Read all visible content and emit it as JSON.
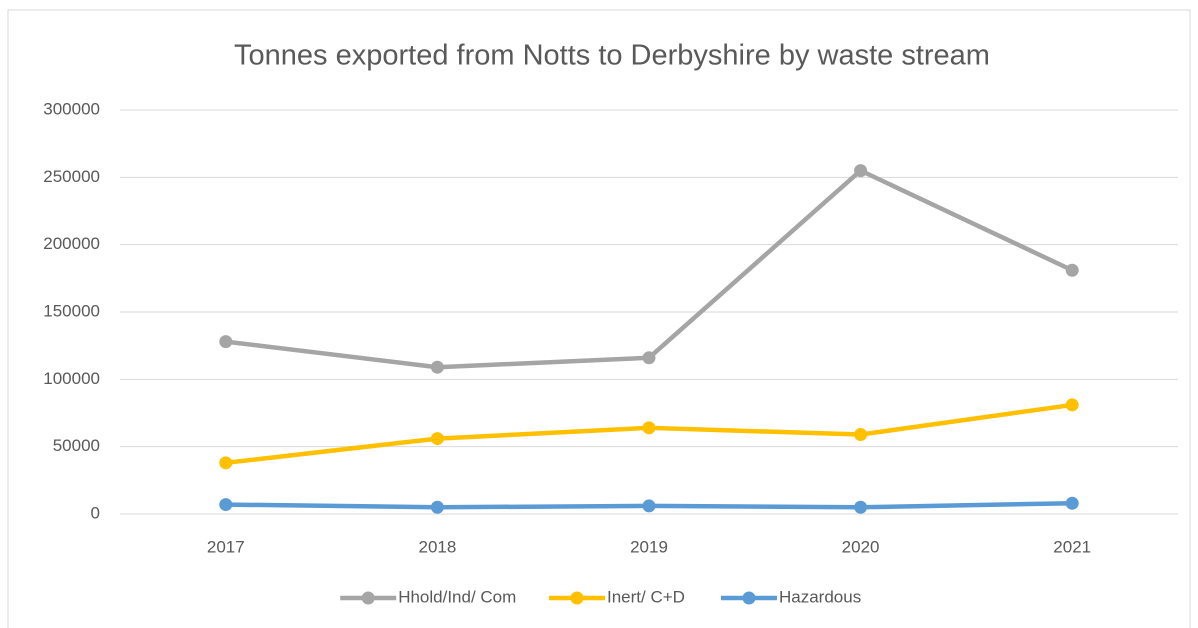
{
  "chart_data": {
    "type": "line",
    "title": "Tonnes exported from Notts to Derbyshire by waste stream",
    "categories": [
      "2017",
      "2018",
      "2019",
      "2020",
      "2021"
    ],
    "series": [
      {
        "name": "Hhold/Ind/ Com",
        "color": "#a5a5a5",
        "values": [
          128000,
          109000,
          116000,
          255000,
          181000
        ]
      },
      {
        "name": "Inert/ C+D",
        "color": "#ffc000",
        "values": [
          38000,
          56000,
          64000,
          59000,
          81000
        ]
      },
      {
        "name": "Hazardous",
        "color": "#5b9bd5",
        "values": [
          7000,
          5000,
          6000,
          5000,
          8000
        ]
      }
    ],
    "ylim": [
      0,
      300000
    ],
    "yticks": [
      0,
      50000,
      100000,
      150000,
      200000,
      250000,
      300000
    ],
    "grid": true,
    "legend": "bottom"
  }
}
